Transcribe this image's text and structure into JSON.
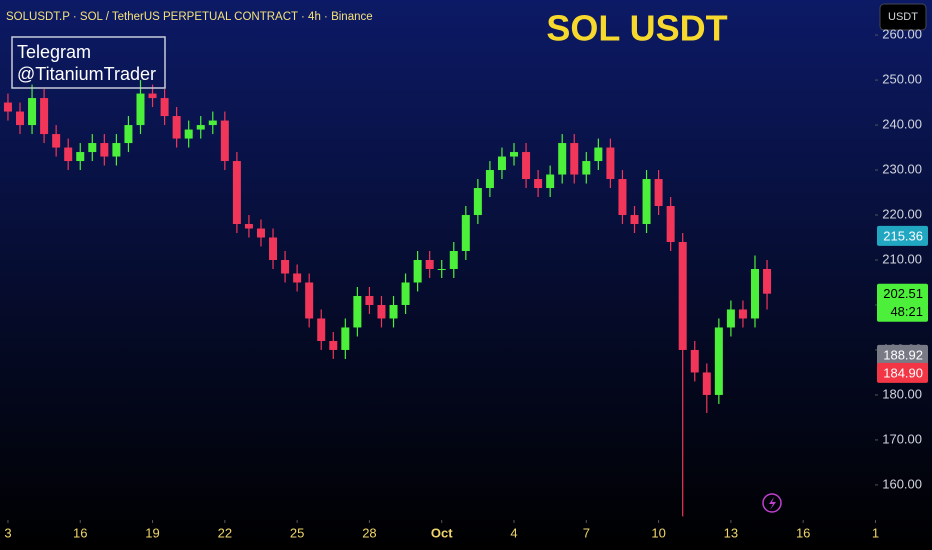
{
  "chart_data": {
    "type": "candlestick",
    "header": "SOLUSDT.P · SOL / TetherUS PERPETUAL CONTRACT · 4h · Binance",
    "title": "SOL USDT",
    "annotation": [
      "Telegram",
      "@TitaniumTrader"
    ],
    "currency_button": "USDT",
    "up_color": "#4cf03a",
    "down_color": "#f23659",
    "x": [
      0,
      0.5,
      1,
      1.5,
      2,
      2.5,
      3,
      3.5,
      4,
      4.5,
      5,
      5.5,
      6,
      6.5,
      7,
      7.5,
      8,
      8.5,
      9,
      9.5,
      10,
      10.5,
      11,
      11.5,
      12,
      12.5,
      13,
      13.5,
      14,
      14.5,
      15,
      15.5,
      16,
      16.5,
      17,
      17.5,
      18,
      18.5,
      19,
      19.5,
      20,
      20.5,
      21,
      21.5,
      22,
      22.5,
      23,
      23.5,
      24,
      24.5,
      25,
      25.5,
      26,
      26.5,
      27,
      27.5,
      28,
      28.5,
      29,
      29.5,
      30,
      30.5,
      31,
      31.5
    ],
    "open": [
      245,
      243,
      240,
      246,
      238,
      235,
      232,
      234,
      236,
      233,
      236,
      240,
      247,
      246,
      242,
      237,
      239,
      240,
      241,
      232,
      218,
      217,
      215,
      210,
      207,
      205,
      197,
      192,
      190,
      195,
      202,
      200,
      197,
      200,
      205,
      210,
      208,
      208,
      212,
      220,
      226,
      230,
      233,
      234,
      228,
      226,
      229,
      236,
      229,
      232,
      235,
      228,
      220,
      218,
      228,
      222,
      214,
      190,
      185,
      180,
      195,
      199,
      197,
      208
    ],
    "high": [
      247,
      245,
      249,
      248,
      240,
      237,
      236,
      238,
      238,
      238,
      242,
      250,
      249,
      248,
      244,
      241,
      242,
      243,
      243,
      234,
      220,
      219,
      217,
      212,
      209,
      207,
      199,
      194,
      197,
      204,
      204,
      202,
      202,
      207,
      212,
      212,
      210,
      214,
      222,
      228,
      232,
      235,
      236,
      236,
      230,
      231,
      238,
      238,
      234,
      237,
      237,
      230,
      222,
      230,
      230,
      224,
      216,
      192,
      187,
      197,
      201,
      201,
      211,
      210
    ],
    "low": [
      241,
      238,
      238,
      236,
      233,
      230,
      230,
      232,
      231,
      231,
      234,
      238,
      244,
      240,
      235,
      235,
      237,
      238,
      230,
      216,
      215,
      213,
      208,
      205,
      203,
      195,
      190,
      188,
      188,
      193,
      198,
      195,
      195,
      198,
      203,
      206,
      206,
      206,
      210,
      218,
      224,
      228,
      231,
      226,
      224,
      224,
      227,
      227,
      227,
      230,
      226,
      218,
      216,
      216,
      220,
      212,
      153,
      183,
      176,
      178,
      193,
      195,
      195,
      199
    ],
    "close": [
      243,
      240,
      246,
      238,
      235,
      232,
      234,
      236,
      233,
      236,
      240,
      247,
      246,
      242,
      237,
      239,
      240,
      241,
      232,
      218,
      217,
      215,
      210,
      207,
      205,
      197,
      192,
      190,
      195,
      202,
      200,
      197,
      200,
      205,
      210,
      208,
      208,
      212,
      220,
      226,
      230,
      233,
      234,
      228,
      226,
      229,
      236,
      229,
      232,
      235,
      228,
      220,
      218,
      228,
      222,
      214,
      190,
      185,
      180,
      195,
      199,
      197,
      208,
      202.51
    ],
    "xlim": [
      -0.33,
      35.98
    ],
    "xticks": [
      {
        "value": 0,
        "label": "3"
      },
      {
        "value": 3,
        "label": "16"
      },
      {
        "value": 6,
        "label": "19"
      },
      {
        "value": 9,
        "label": "22"
      },
      {
        "value": 12,
        "label": "25"
      },
      {
        "value": 15,
        "label": "28"
      },
      {
        "value": 18,
        "label": "Oct"
      },
      {
        "value": 21,
        "label": "4"
      },
      {
        "value": 24,
        "label": "7"
      },
      {
        "value": 27,
        "label": "10"
      },
      {
        "value": 30,
        "label": "13"
      },
      {
        "value": 33,
        "label": "16"
      },
      {
        "value": 36,
        "label": "1"
      }
    ],
    "ylim": [
      152.2,
      267.8
    ],
    "yticks": [
      {
        "value": 160,
        "label": "160.00"
      },
      {
        "value": 170,
        "label": "170.00"
      },
      {
        "value": 180,
        "label": "180.00"
      },
      {
        "value": 190,
        "label": "190.00"
      },
      {
        "value": 200,
        "label": "200.00"
      },
      {
        "value": 210,
        "label": "210.00"
      },
      {
        "value": 220,
        "label": "220.00"
      },
      {
        "value": 230,
        "label": "230.00"
      },
      {
        "value": 240,
        "label": "240.00"
      },
      {
        "value": 250,
        "label": "250.00"
      },
      {
        "value": 260,
        "label": "260.00"
      }
    ],
    "price_labels": [
      {
        "value": 215.36,
        "label": "215.36",
        "color": "#22a7c2"
      },
      {
        "value": 202.51,
        "label": "202.51",
        "color": "#4cf03a"
      },
      {
        "value": 188.92,
        "label": "188.92",
        "color": "#787b86"
      },
      {
        "value": 184.9,
        "label": "184.90",
        "color": "#f23645"
      }
    ],
    "countdown": "48:21"
  }
}
